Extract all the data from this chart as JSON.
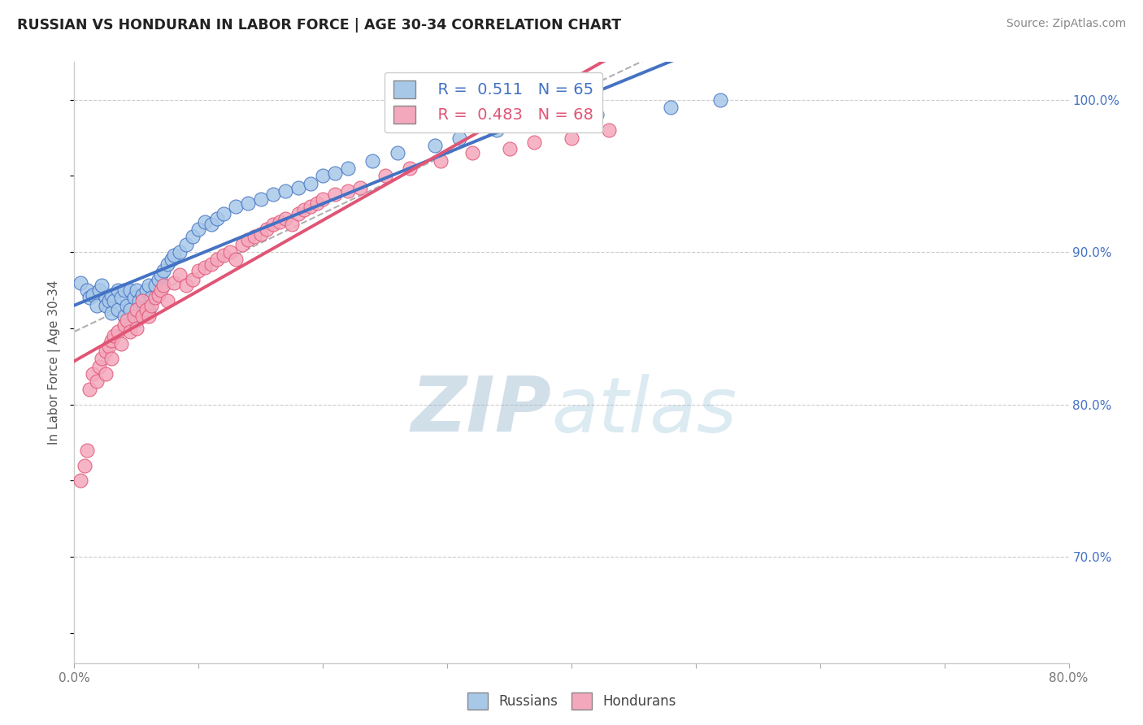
{
  "title": "RUSSIAN VS HONDURAN IN LABOR FORCE | AGE 30-34 CORRELATION CHART",
  "source_text": "Source: ZipAtlas.com",
  "ylabel": "In Labor Force | Age 30-34",
  "r_russian": 0.511,
  "n_russian": 65,
  "r_honduran": 0.483,
  "n_honduran": 68,
  "russian_color": "#a8c8e8",
  "honduran_color": "#f4a8bc",
  "russian_line_color": "#4472c4",
  "honduran_line_color": "#e05575",
  "dashed_line_color": "#b0b0b0",
  "title_color": "#222222",
  "right_axis_color": "#4472c4",
  "background_color": "#ffffff",
  "grid_color": "#cccccc",
  "watermark_color": "#c5d8ee",
  "watermark_text_color": "#8ab4d4",
  "xlim": [
    0.0,
    0.8
  ],
  "ylim": [
    0.63,
    1.025
  ],
  "xticks": [
    0.0,
    0.1,
    0.2,
    0.3,
    0.4,
    0.5,
    0.6,
    0.7,
    0.8
  ],
  "xticklabels": [
    "0.0%",
    "",
    "",
    "",
    "",
    "",
    "",
    "",
    "80.0%"
  ],
  "yticks_right": [
    0.7,
    0.8,
    0.9,
    1.0
  ],
  "yticklabels_right": [
    "70.0%",
    "80.0%",
    "90.0%",
    "100.0%"
  ],
  "russian_x": [
    0.005,
    0.01,
    0.012,
    0.015,
    0.018,
    0.02,
    0.022,
    0.025,
    0.025,
    0.028,
    0.03,
    0.03,
    0.032,
    0.035,
    0.035,
    0.038,
    0.04,
    0.04,
    0.042,
    0.045,
    0.045,
    0.048,
    0.05,
    0.05,
    0.052,
    0.055,
    0.055,
    0.058,
    0.06,
    0.06,
    0.062,
    0.065,
    0.068,
    0.07,
    0.072,
    0.075,
    0.078,
    0.08,
    0.085,
    0.09,
    0.095,
    0.1,
    0.105,
    0.11,
    0.115,
    0.12,
    0.13,
    0.14,
    0.15,
    0.16,
    0.17,
    0.18,
    0.19,
    0.2,
    0.21,
    0.22,
    0.24,
    0.26,
    0.29,
    0.31,
    0.34,
    0.38,
    0.42,
    0.48,
    0.52
  ],
  "russian_y": [
    0.88,
    0.875,
    0.87,
    0.872,
    0.865,
    0.875,
    0.878,
    0.87,
    0.865,
    0.868,
    0.872,
    0.86,
    0.868,
    0.875,
    0.862,
    0.87,
    0.875,
    0.858,
    0.865,
    0.875,
    0.862,
    0.87,
    0.875,
    0.855,
    0.868,
    0.872,
    0.86,
    0.875,
    0.878,
    0.862,
    0.87,
    0.878,
    0.882,
    0.885,
    0.888,
    0.892,
    0.895,
    0.898,
    0.9,
    0.905,
    0.91,
    0.915,
    0.92,
    0.918,
    0.922,
    0.925,
    0.93,
    0.932,
    0.935,
    0.938,
    0.94,
    0.942,
    0.945,
    0.95,
    0.952,
    0.955,
    0.96,
    0.965,
    0.97,
    0.975,
    0.98,
    0.985,
    0.99,
    0.995,
    1.0
  ],
  "honduran_x": [
    0.005,
    0.008,
    0.01,
    0.012,
    0.015,
    0.018,
    0.02,
    0.022,
    0.025,
    0.025,
    0.028,
    0.03,
    0.03,
    0.032,
    0.035,
    0.038,
    0.04,
    0.042,
    0.045,
    0.048,
    0.05,
    0.05,
    0.055,
    0.055,
    0.058,
    0.06,
    0.062,
    0.065,
    0.068,
    0.07,
    0.072,
    0.075,
    0.08,
    0.085,
    0.09,
    0.095,
    0.1,
    0.105,
    0.11,
    0.115,
    0.12,
    0.125,
    0.13,
    0.135,
    0.14,
    0.145,
    0.15,
    0.155,
    0.16,
    0.165,
    0.17,
    0.175,
    0.18,
    0.185,
    0.19,
    0.195,
    0.2,
    0.21,
    0.22,
    0.23,
    0.25,
    0.27,
    0.295,
    0.32,
    0.35,
    0.37,
    0.4,
    0.43
  ],
  "honduran_y": [
    0.75,
    0.76,
    0.77,
    0.81,
    0.82,
    0.815,
    0.825,
    0.83,
    0.835,
    0.82,
    0.838,
    0.842,
    0.83,
    0.845,
    0.848,
    0.84,
    0.852,
    0.855,
    0.848,
    0.858,
    0.862,
    0.85,
    0.858,
    0.868,
    0.862,
    0.858,
    0.865,
    0.87,
    0.872,
    0.875,
    0.878,
    0.868,
    0.88,
    0.885,
    0.878,
    0.882,
    0.888,
    0.89,
    0.892,
    0.895,
    0.898,
    0.9,
    0.895,
    0.905,
    0.908,
    0.91,
    0.912,
    0.915,
    0.918,
    0.92,
    0.922,
    0.918,
    0.925,
    0.928,
    0.93,
    0.932,
    0.935,
    0.938,
    0.94,
    0.942,
    0.95,
    0.955,
    0.96,
    0.965,
    0.968,
    0.972,
    0.975,
    0.98
  ],
  "legend_border_color": "#cccccc"
}
